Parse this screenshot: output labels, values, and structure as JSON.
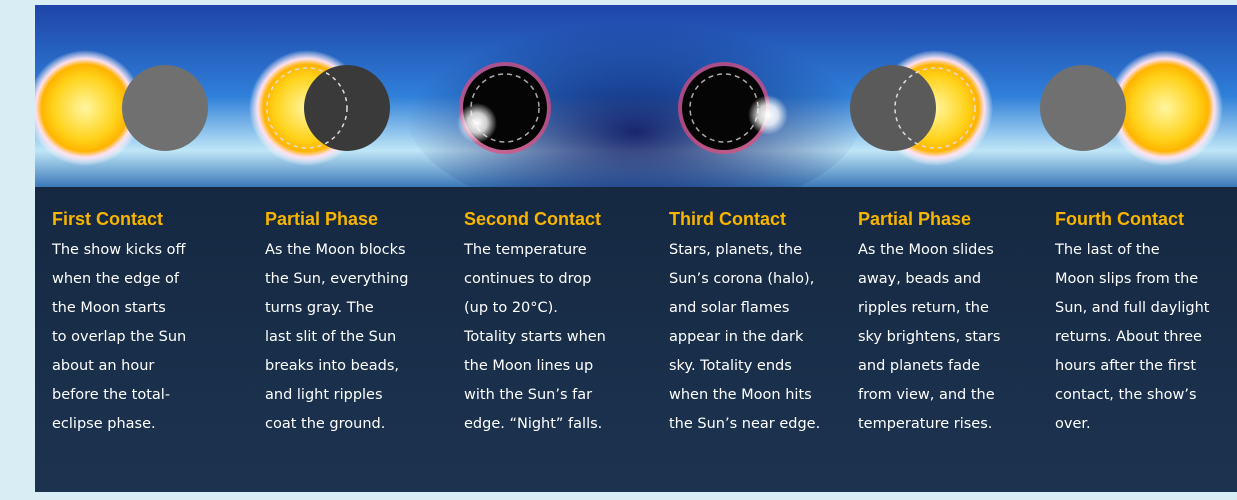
{
  "phases": [
    {
      "title": "First Contact",
      "lines": [
        "The show kicks off",
        "when the edge of",
        "the Moon starts",
        "to overlap the Sun",
        "about an hour",
        "before the total-",
        "eclipse phase."
      ]
    },
    {
      "title": "Partial Phase",
      "lines": [
        "As the Moon blocks",
        "the Sun, everything",
        "turns gray. The",
        "last slit of the Sun",
        "breaks into beads,",
        "and light ripples",
        "coat the ground."
      ]
    },
    {
      "title": "Second Contact",
      "lines": [
        "The temperature",
        "continues to drop",
        "(up to 20°C).",
        "Totality starts when",
        "the Moon lines up",
        "with the Sun’s far",
        "edge. “Night” falls."
      ]
    },
    {
      "title": "Third Contact",
      "lines": [
        "Stars, planets, the",
        "Sun’s corona (halo),",
        "and solar flames",
        "appear in the dark",
        "sky. Totality ends",
        "when the Moon hits",
        "the Sun’s near edge."
      ]
    },
    {
      "title": "Partial Phase",
      "lines": [
        "As the Moon slides",
        "away, beads and",
        "ripples return, the",
        "sky brightens, stars",
        "and planets fade",
        "from view, and the",
        "temperature rises."
      ]
    },
    {
      "title": "Fourth Contact",
      "lines": [
        "The last of the",
        "Moon slips from the",
        "Sun, and full daylight",
        "returns. About three",
        "hours after the first",
        "contact, the show’s",
        "over."
      ]
    }
  ]
}
